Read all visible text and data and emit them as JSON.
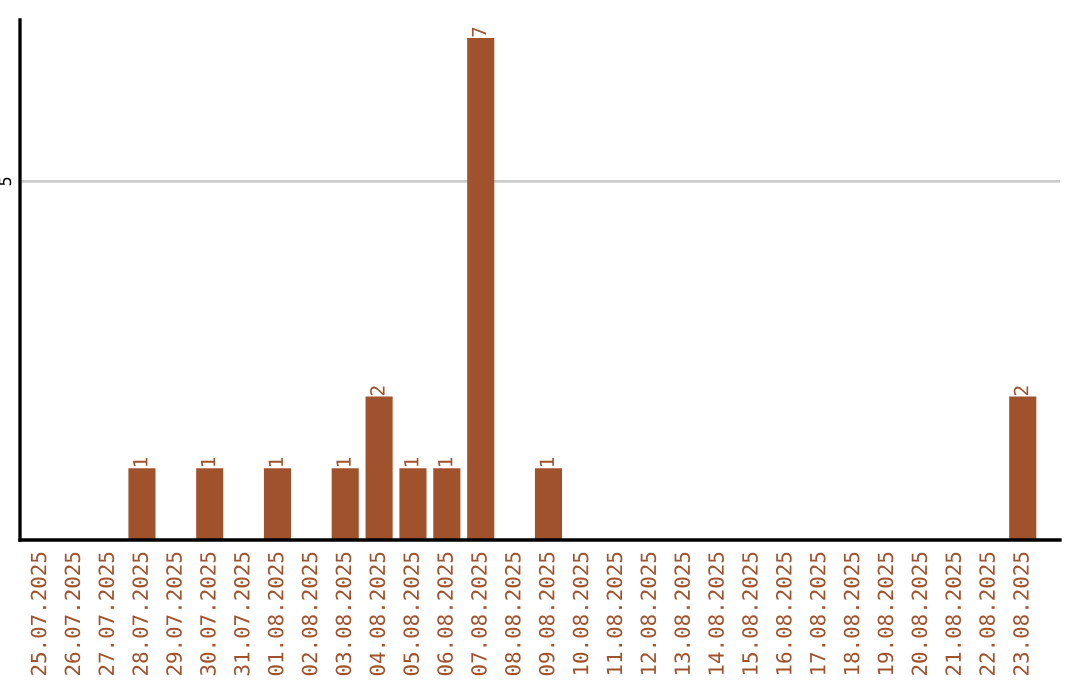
{
  "chart_data": {
    "type": "bar",
    "categories": [
      "25.07.2025",
      "26.07.2025",
      "27.07.2025",
      "28.07.2025",
      "29.07.2025",
      "30.07.2025",
      "31.07.2025",
      "01.08.2025",
      "02.08.2025",
      "03.08.2025",
      "04.08.2025",
      "05.08.2025",
      "06.08.2025",
      "07.08.2025",
      "08.08.2025",
      "09.08.2025",
      "10.08.2025",
      "11.08.2025",
      "12.08.2025",
      "13.08.2025",
      "14.08.2025",
      "15.08.2025",
      "16.08.2025",
      "17.08.2025",
      "18.08.2025",
      "19.08.2025",
      "20.08.2025",
      "21.08.2025",
      "22.08.2025",
      "23.08.2025"
    ],
    "values": [
      0,
      0,
      0,
      1,
      0,
      1,
      0,
      1,
      0,
      1,
      2,
      1,
      1,
      7,
      0,
      1,
      0,
      0,
      0,
      0,
      0,
      0,
      0,
      0,
      0,
      0,
      0,
      0,
      0,
      2
    ],
    "value_labels": [
      null,
      null,
      null,
      "1",
      null,
      "1",
      null,
      "1",
      null,
      "1",
      "2",
      "1",
      "1",
      "7",
      null,
      "1",
      null,
      null,
      null,
      null,
      null,
      null,
      null,
      null,
      null,
      null,
      null,
      null,
      null,
      "2"
    ],
    "color": "#a0522d",
    "ylim": [
      0,
      7.25
    ],
    "yticks": [
      5
    ],
    "grid": "y",
    "legend": false
  }
}
